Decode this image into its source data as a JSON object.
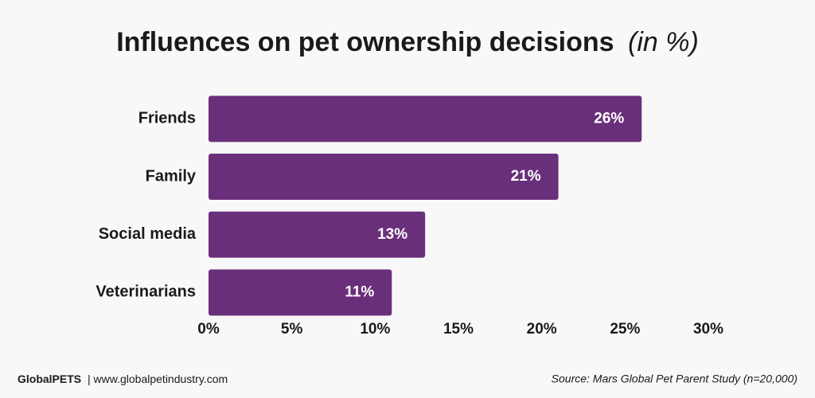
{
  "chart_data": {
    "type": "hbar",
    "title": "Influences on pet ownership decisions",
    "title_unit": "(in %)",
    "categories": [
      "Friends",
      "Family",
      "Social media",
      "Veterinarians"
    ],
    "values": [
      26,
      21,
      13,
      11
    ],
    "value_labels": [
      "26%",
      "21%",
      "13%",
      "11%"
    ],
    "color": "#6a2f7a",
    "xlim": [
      0,
      30
    ],
    "xticks": [
      {
        "value": 0,
        "label": "0%"
      },
      {
        "value": 5,
        "label": "5%"
      },
      {
        "value": 10,
        "label": "10%"
      },
      {
        "value": 15,
        "label": "15%"
      },
      {
        "value": 20,
        "label": "20%"
      },
      {
        "value": 25,
        "label": "25%"
      },
      {
        "value": 30,
        "label": "30%"
      }
    ],
    "grid": false,
    "brand": "GlobalPETS",
    "website": "| www.globalpetindustry.com",
    "source": "Source: Mars Global Pet Parent Study (n=20,000)"
  }
}
